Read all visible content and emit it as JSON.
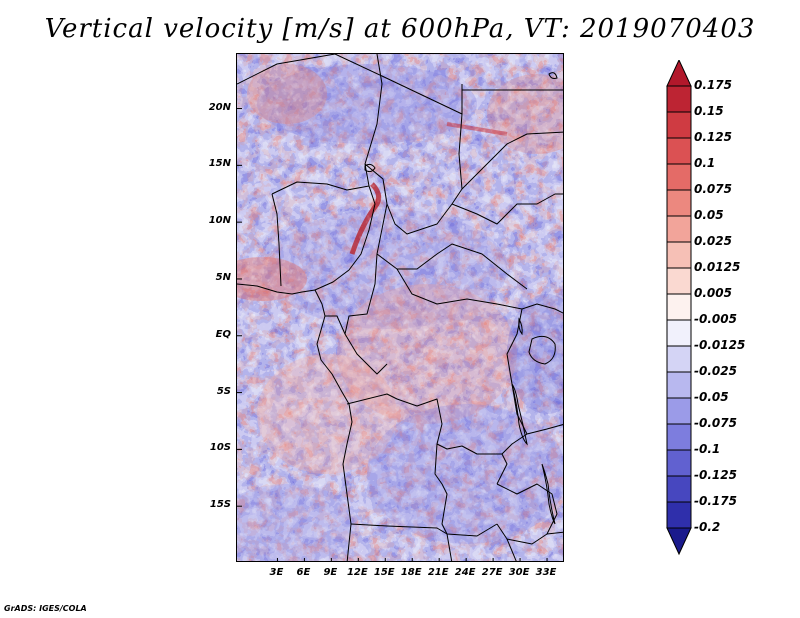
{
  "title": "Vertical velocity [m/s] at 600hPa, VT: 2019070403",
  "credit": "GrADS: IGES/COLA",
  "map": {
    "lon_range": [
      -1.5,
      35
    ],
    "lat_range": [
      -20,
      24.8
    ],
    "lat_ticks": [
      {
        "value": 20,
        "label": "20N"
      },
      {
        "value": 15,
        "label": "15N"
      },
      {
        "value": 10,
        "label": "10N"
      },
      {
        "value": 5,
        "label": "5N"
      },
      {
        "value": 0,
        "label": "EQ"
      },
      {
        "value": -5,
        "label": "5S"
      },
      {
        "value": -10,
        "label": "10S"
      },
      {
        "value": -15,
        "label": "15S"
      }
    ],
    "lon_ticks": [
      {
        "value": 3,
        "label": "3E"
      },
      {
        "value": 6,
        "label": "6E"
      },
      {
        "value": 9,
        "label": "9E"
      },
      {
        "value": 12,
        "label": "12E"
      },
      {
        "value": 15,
        "label": "15E"
      },
      {
        "value": 18,
        "label": "18E"
      },
      {
        "value": 21,
        "label": "21E"
      },
      {
        "value": 24,
        "label": "24E"
      },
      {
        "value": 27,
        "label": "27E"
      },
      {
        "value": 30,
        "label": "30E"
      },
      {
        "value": 33,
        "label": "33E"
      }
    ]
  },
  "colorbar": {
    "levels": [
      {
        "label": "0.175",
        "color": "#b2182b"
      },
      {
        "label": "0.15",
        "color": "#c8303a"
      },
      {
        "label": "0.125",
        "color": "#d6454a"
      },
      {
        "label": "0.1",
        "color": "#e05c5c"
      },
      {
        "label": "0.075",
        "color": "#e87a72"
      },
      {
        "label": "0.05",
        "color": "#ef968c"
      },
      {
        "label": "0.025",
        "color": "#f4b2a8"
      },
      {
        "label": "0.0125",
        "color": "#f8cec4"
      },
      {
        "label": "0.005",
        "color": "#fbe4de"
      },
      {
        "label": "-0.005",
        "color": "#ffffff"
      },
      {
        "label": "-0.0125",
        "color": "#e2e2f8"
      },
      {
        "label": "-0.025",
        "color": "#c6c6f2"
      },
      {
        "label": "-0.05",
        "color": "#a9a9ec"
      },
      {
        "label": "-0.075",
        "color": "#8c8ce4"
      },
      {
        "label": "-0.1",
        "color": "#6e6ed8"
      },
      {
        "label": "-0.125",
        "color": "#5454c8"
      },
      {
        "label": "-0.175",
        "color": "#3a3ab6"
      },
      {
        "label": "-0.2",
        "color": "#2424a0"
      }
    ],
    "top_triangle_color": "#b2182b",
    "bottom_triangle_color": "#1a1a8c"
  }
}
